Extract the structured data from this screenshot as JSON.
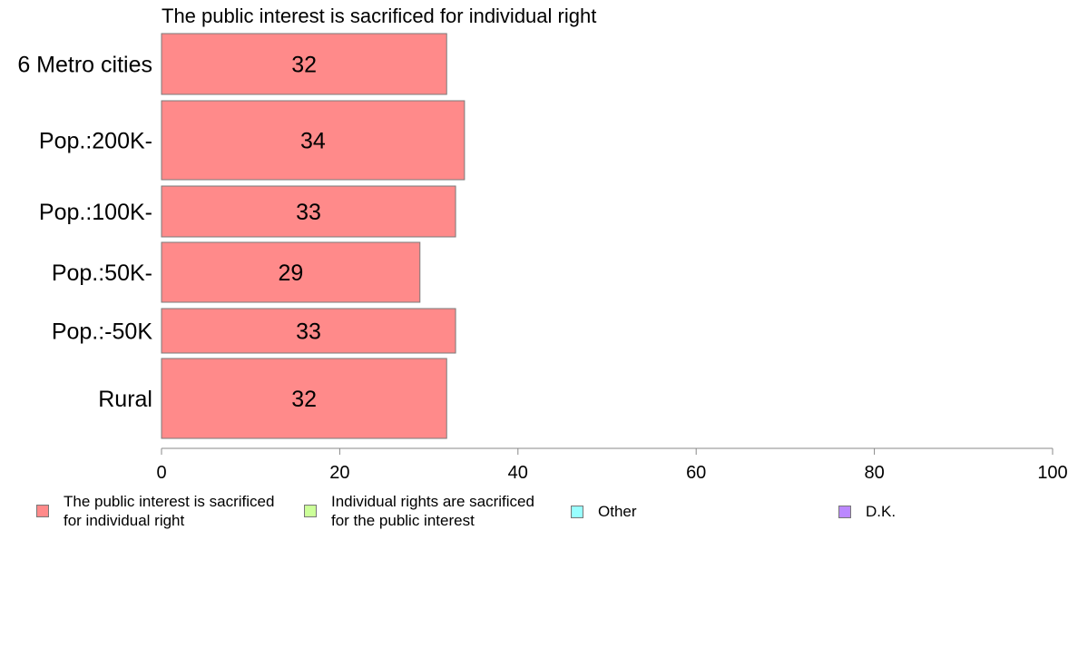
{
  "chart_data": {
    "type": "bar",
    "orientation": "horizontal",
    "title": "The public interest is sacrificed for individual right",
    "categories": [
      "6 Metro cities",
      "Pop.:200K-",
      "Pop.:100K-",
      "Pop.:50K-",
      "Pop.:-50K",
      "Rural"
    ],
    "series": [
      {
        "name": "The public interest is sacrificed for individual right",
        "values": [
          32,
          34,
          33,
          29,
          33,
          32
        ],
        "labels": [
          "32",
          "34",
          "33",
          "29",
          "33",
          "32"
        ],
        "color": "#ff8a8a"
      }
    ],
    "xlim": [
      0,
      100
    ],
    "xticks": [
      "0",
      "20",
      "40",
      "60",
      "80",
      "100"
    ],
    "grid": false,
    "legend_position": "bottom",
    "legend": [
      {
        "label": "The public interest is sacrificed\nfor individual right",
        "color": "#ff8a8a"
      },
      {
        "label": "Individual rights are sacrificed\nfor the public interest",
        "color": "#ccff99"
      },
      {
        "label": "Other",
        "color": "#99ffff"
      },
      {
        "label": "D.K.",
        "color": "#bb88ff"
      }
    ]
  }
}
